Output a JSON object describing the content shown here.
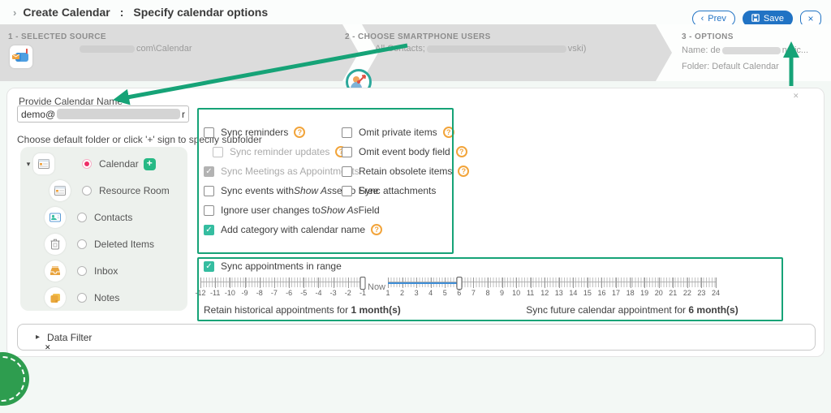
{
  "header": {
    "breadcrumb_chevron": "›",
    "title": "Create Calendar",
    "colon": ":",
    "subtitle": "Specify calendar options",
    "prev_chevron": "‹",
    "prev_label": "Prev",
    "save_label": "Save",
    "close_label": "×"
  },
  "steps": {
    "step1": {
      "title": "1 - SELECTED SOURCE",
      "source_suffix": "com\\Calendar"
    },
    "step2": {
      "title": "2 - CHOOSE SMARTPHONE USERS",
      "users_prefix": "All Contacts; ",
      "users_suffix": "vski)"
    },
    "step3": {
      "title": "3 - OPTIONS",
      "name_prefix": "Name: de",
      "name_suffix": "nmic...",
      "folder": "Folder: Default Calendar"
    }
  },
  "main": {
    "calendar_name_label": "Provide Calendar Name",
    "calendar_name_value": "demo@",
    "calendar_name_value_suffix": "r",
    "folder_hint": "Choose default folder or click '+' sign to specify subfolder",
    "tree": {
      "expand_caret": "▾",
      "add_label": "+",
      "items": [
        {
          "label": "Calendar",
          "icon": "calendar-icon",
          "selected": true,
          "caret": true,
          "add_button": true,
          "indent": 0
        },
        {
          "label": "Resource Room",
          "icon": "calendar-icon",
          "selected": false,
          "indent": 2
        },
        {
          "label": "Contacts",
          "icon": "contacts-icon",
          "selected": false,
          "indent": 1
        },
        {
          "label": "Deleted Items",
          "icon": "deleted-items-icon",
          "selected": false,
          "indent": 1
        },
        {
          "label": "Inbox",
          "icon": "inbox-icon",
          "selected": false,
          "indent": 1
        },
        {
          "label": "Notes",
          "icon": "notes-icon",
          "selected": false,
          "indent": 1
        }
      ]
    },
    "options": {
      "left": [
        {
          "label_segments": [
            {
              "text": "Sync reminders"
            }
          ],
          "state": "unchecked",
          "help": true
        },
        {
          "label_segments": [
            {
              "text": "Sync reminder updates"
            }
          ],
          "state": "unchecked",
          "disabled": true,
          "help": true,
          "indent": true
        },
        {
          "label_segments": [
            {
              "text": "Sync Meetings as Appointments"
            }
          ],
          "state": "checked",
          "disabled": true
        },
        {
          "label_segments": [
            {
              "text": "Sync events with "
            },
            {
              "text": "Show As",
              "italic": true
            },
            {
              "text": " set to Free"
            }
          ],
          "state": "unchecked"
        },
        {
          "label_segments": [
            {
              "text": "Ignore user changes to "
            },
            {
              "text": "Show As",
              "italic": true
            },
            {
              "text": " Field"
            }
          ],
          "state": "unchecked"
        },
        {
          "label_segments": [
            {
              "text": "Add category with calendar name"
            }
          ],
          "state": "checked",
          "help": true
        }
      ],
      "right": [
        {
          "label_segments": [
            {
              "text": "Omit private items"
            }
          ],
          "state": "unchecked",
          "help": true
        },
        {
          "label_segments": [
            {
              "text": "Omit event body field"
            }
          ],
          "state": "unchecked",
          "help": true
        },
        {
          "label_segments": [
            {
              "text": "Retain obsolete items"
            }
          ],
          "state": "unchecked",
          "help": true
        },
        {
          "label_segments": [
            {
              "text": "Sync attachments"
            }
          ],
          "state": "unchecked"
        }
      ],
      "check_glyph": "✓"
    },
    "range": {
      "label": "Sync appointments in range",
      "now_label": "Now",
      "past": {
        "tick_labels": [
          "-12",
          "-11",
          "-10",
          "-9",
          "-8",
          "-7",
          "-6",
          "-5",
          "-4",
          "-3",
          "-2",
          "-1"
        ],
        "handle_value": -1,
        "handle_pct": 100,
        "caption": "Retain historical appointments for ",
        "caption_value": "1 month(s)"
      },
      "future": {
        "tick_labels": [
          "1",
          "2",
          "3",
          "4",
          "5",
          "6",
          "7",
          "8",
          "9",
          "10",
          "11",
          "12",
          "13",
          "14",
          "15",
          "16",
          "17",
          "18",
          "19",
          "20",
          "21",
          "22",
          "23",
          "24"
        ],
        "handle_value": 6,
        "handle_pct": 21.7,
        "track_pct": 21.7,
        "caption": "Sync future calendar appointment for ",
        "caption_value": "6 month(s)"
      }
    },
    "data_filter": {
      "caret": "▸",
      "label": "Data Filter"
    },
    "cursor_mark": "✕",
    "panel_corner_mark": "✕"
  },
  "colors": {
    "annotation_green": "#16a377",
    "accent_blue": "#2173c4",
    "checkbox_teal": "#35bda0",
    "help_orange": "#f2a43a",
    "radio_pink": "#ee2d67",
    "slider_blue": "#3e8ed8",
    "stamp_green": "#2e9d4f"
  }
}
